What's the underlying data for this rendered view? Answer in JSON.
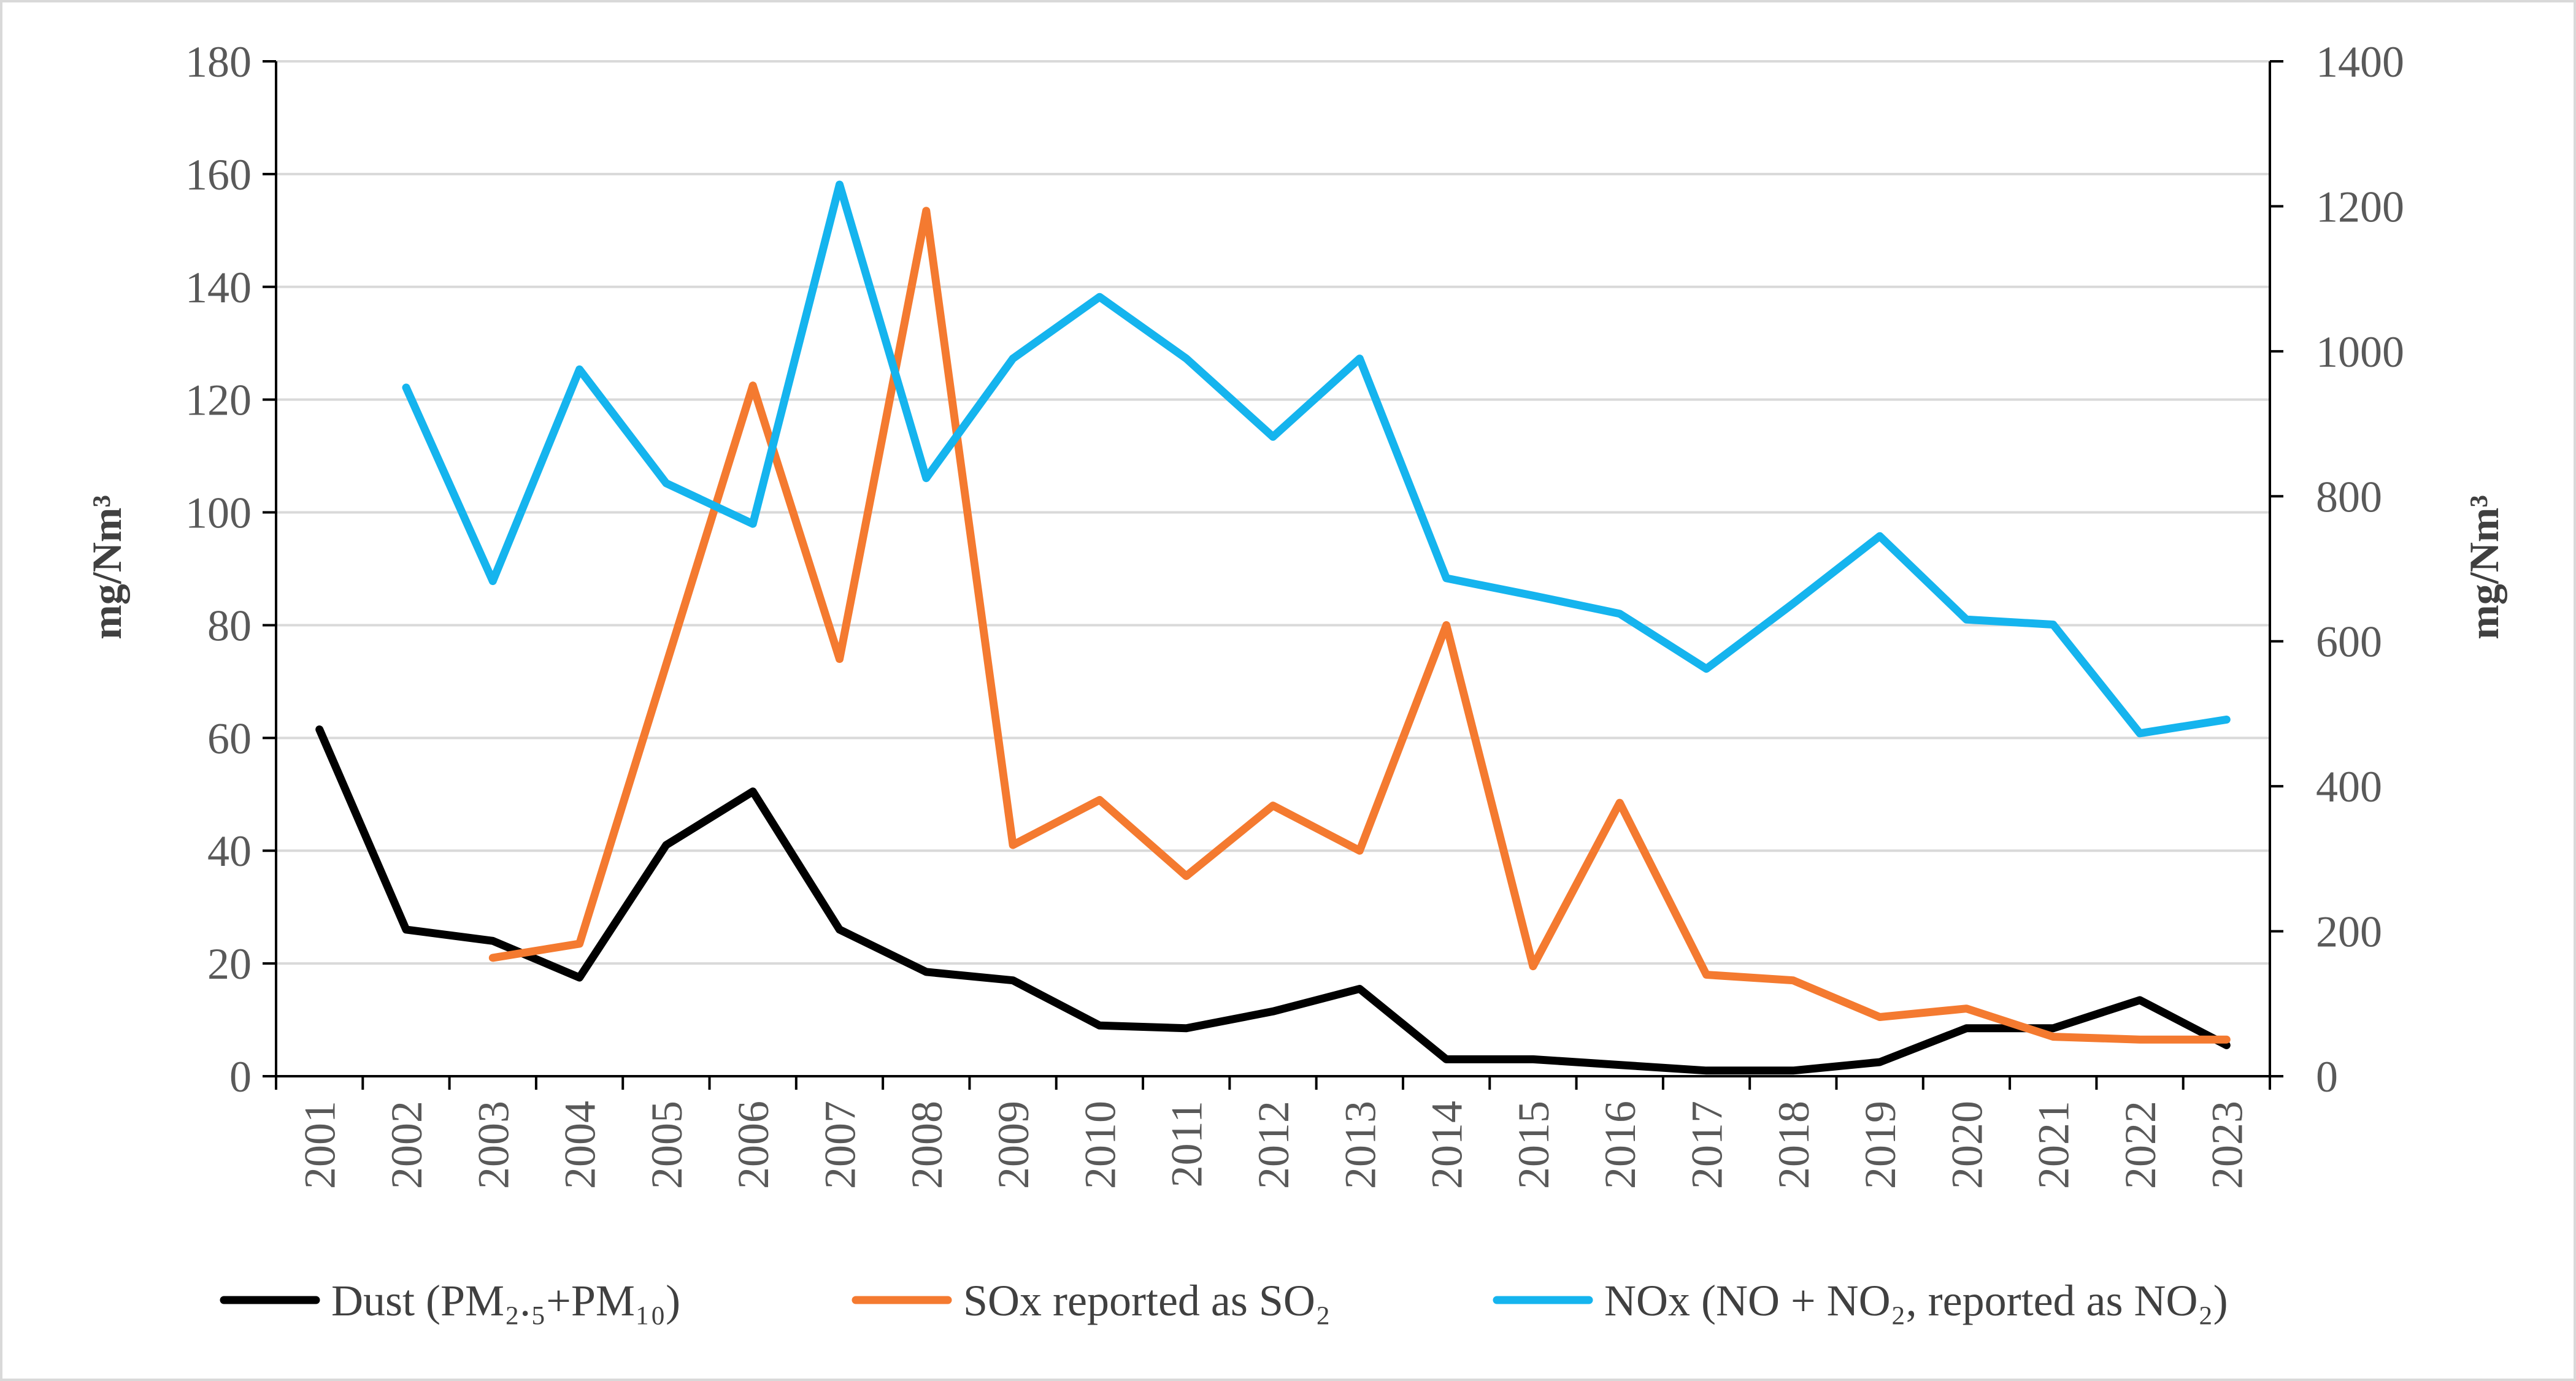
{
  "chart_data": {
    "type": "line",
    "categories": [
      "2001",
      "2002",
      "2003",
      "2004",
      "2005",
      "2006",
      "2007",
      "2008",
      "2009",
      "2010",
      "2011",
      "2012",
      "2013",
      "2014",
      "2015",
      "2016",
      "2017",
      "2018",
      "2019",
      "2020",
      "2021",
      "2022",
      "2023"
    ],
    "ylabel_left": "mg/Nm³",
    "ylabel_right": "mg/Nm³",
    "ylim_left": [
      0,
      180
    ],
    "ylim_right": [
      0,
      1400
    ],
    "yticks_left": [
      "0",
      "20",
      "40",
      "60",
      "80",
      "100",
      "120",
      "140",
      "160",
      "180"
    ],
    "yticks_right": [
      "0",
      "200",
      "400",
      "600",
      "800",
      "1000",
      "1200",
      "1400"
    ],
    "grid": true,
    "legend_position": "bottom",
    "series": [
      {
        "name": "Dust (PM₂.₅+PM₁₀)",
        "axis": "left",
        "color": "#000000",
        "values": [
          61.5,
          26,
          24,
          17.5,
          41,
          50.5,
          26,
          18.5,
          17,
          9,
          8.5,
          11.5,
          15.5,
          3,
          3,
          2,
          1,
          1,
          2.5,
          8.5,
          8.5,
          13.5,
          5.5
        ]
      },
      {
        "name": "SOx reported as SO₂",
        "axis": "left",
        "color": "#f47a30",
        "values": [
          null,
          null,
          21,
          23.5,
          73,
          122.5,
          74,
          153.5,
          41,
          49,
          35.5,
          48,
          40,
          80,
          19.5,
          48.5,
          18,
          17,
          10.5,
          12,
          7,
          6.5,
          6.5
        ]
      },
      {
        "name": "NOx (NO + NO₂, reported as NO₂)",
        "axis": "right",
        "color": "#15b4ee",
        "values": [
          null,
          950,
          683,
          975,
          818,
          762,
          1230,
          825,
          990,
          1075,
          990,
          882,
          990,
          687,
          663,
          638,
          562,
          652,
          745,
          630,
          623,
          473,
          492
        ]
      }
    ]
  }
}
